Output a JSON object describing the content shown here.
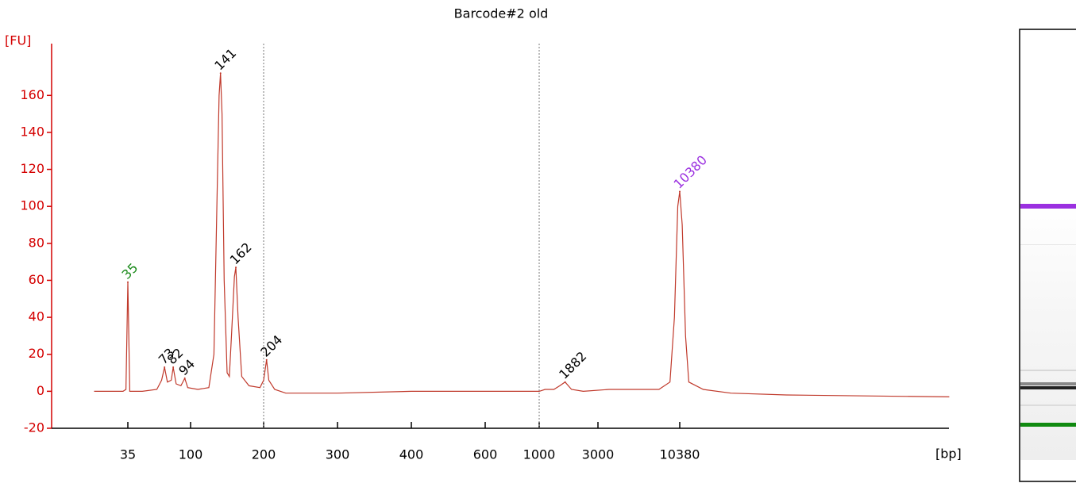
{
  "chart_data": {
    "type": "line",
    "title": "Barcode#2 old",
    "y_label": "[FU]",
    "x_label": "[bp]",
    "ylim": [
      -20,
      188
    ],
    "yticks": [
      -20,
      0,
      20,
      40,
      60,
      80,
      100,
      120,
      140,
      160
    ],
    "xticks": [
      35,
      100,
      200,
      300,
      400,
      600,
      1000,
      3000,
      10380
    ],
    "markers": [
      200,
      1000
    ],
    "series": [
      {
        "name": "Barcode#2 old",
        "color": "#c0392b",
        "x": [
          0,
          30,
          33,
          34,
          35,
          36,
          37,
          50,
          65,
          70,
          73,
          76,
          80,
          82,
          85,
          90,
          94,
          97,
          110,
          125,
          132,
          136,
          139,
          141,
          143,
          146,
          150,
          153,
          156,
          160,
          162,
          165,
          170,
          180,
          195,
          200,
          204,
          207,
          215,
          230,
          300,
          400,
          500,
          700,
          1000,
          1200,
          1500,
          1700,
          1882,
          2100,
          2500,
          4000,
          6000,
          8500,
          9500,
          9900,
          10200,
          10380,
          10600,
          10900,
          11200,
          12500,
          15000,
          20000,
          34700
        ],
        "values": [
          0,
          0,
          1,
          30,
          59,
          30,
          0,
          0,
          1,
          6,
          13,
          5,
          6,
          13,
          4,
          3,
          7,
          2,
          1,
          2,
          20,
          100,
          160,
          172,
          150,
          60,
          10,
          8,
          30,
          62,
          67,
          40,
          8,
          3,
          2,
          6,
          17,
          6,
          1,
          -1,
          -1,
          0,
          0,
          0,
          0,
          1,
          1,
          3,
          5,
          1,
          0,
          1,
          1,
          1,
          5,
          40,
          100,
          108,
          90,
          30,
          5,
          1,
          -1,
          -2,
          -3
        ]
      }
    ],
    "peaks": [
      {
        "bp": 35,
        "fu": 59,
        "color": "#1a8a1a"
      },
      {
        "bp": 73,
        "fu": 13,
        "color": "#000000"
      },
      {
        "bp": 82,
        "fu": 13,
        "color": "#000000"
      },
      {
        "bp": 94,
        "fu": 7,
        "color": "#000000"
      },
      {
        "bp": 141,
        "fu": 172,
        "color": "#000000"
      },
      {
        "bp": 162,
        "fu": 67,
        "color": "#000000"
      },
      {
        "bp": 204,
        "fu": 17,
        "color": "#000000"
      },
      {
        "bp": 1882,
        "fu": 5,
        "color": "#000000"
      },
      {
        "bp": 10380,
        "fu": 108,
        "color": "#9b30e0"
      }
    ]
  }
}
